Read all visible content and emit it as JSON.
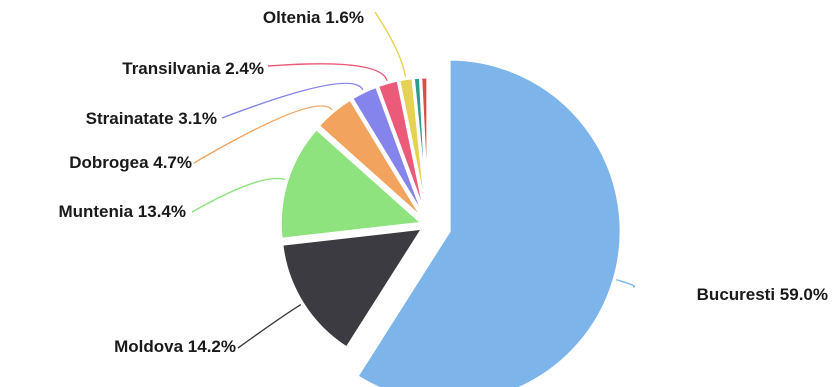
{
  "chart_data": {
    "type": "pie",
    "title": "",
    "slices": [
      {
        "label": "Bucuresti 59.0%",
        "category": "Bucuresti",
        "value": 59.0,
        "color": "#7db5ea"
      },
      {
        "label": "Moldova 14.2%",
        "category": "Moldova",
        "value": 14.2,
        "color": "#3b3b41"
      },
      {
        "label": "Muntenia 13.4%",
        "category": "Muntenia",
        "value": 13.4,
        "color": "#8ee37e"
      },
      {
        "label": "Dobrogea 4.7%",
        "category": "Dobrogea",
        "value": 4.7,
        "color": "#f2a35e"
      },
      {
        "label": "Strainatate 3.1%",
        "category": "Strainatate",
        "value": 3.1,
        "color": "#8584ec"
      },
      {
        "label": "Transilvania 2.4%",
        "category": "Transilvania",
        "value": 2.4,
        "color": "#ec5a79"
      },
      {
        "label": "Oltenia 1.6%",
        "category": "Oltenia",
        "value": 1.6,
        "color": "#e6d252"
      },
      {
        "label": "",
        "category": "",
        "value": 0.8,
        "color": "#2c9c8f"
      },
      {
        "label": "",
        "category": "",
        "value": 0.8,
        "color": "#e04a4a"
      }
    ],
    "legend": "none",
    "exploded": true
  }
}
